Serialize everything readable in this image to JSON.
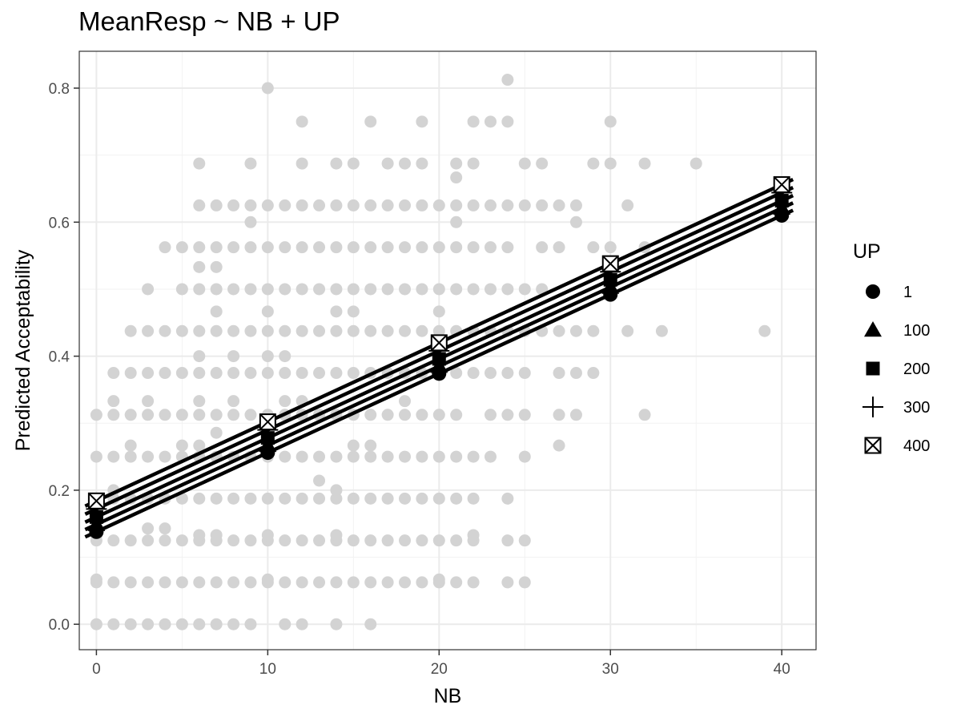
{
  "chart_data": {
    "type": "scatter",
    "title": "MeanResp ~ NB + UP",
    "xlabel": "NB",
    "ylabel": "Predicted Acceptability",
    "xlim": [
      -1,
      42
    ],
    "ylim": [
      -0.038,
      0.855
    ],
    "x_ticks": [
      0,
      10,
      20,
      30,
      40
    ],
    "y_ticks": [
      0.0,
      0.2,
      0.4,
      0.6,
      0.8
    ],
    "x_tick_labels": [
      "0",
      "10",
      "20",
      "30",
      "40"
    ],
    "y_tick_labels": [
      "0.0",
      "0.2",
      "0.4",
      "0.6",
      "0.8"
    ],
    "grid": true,
    "raw_points_color": "#d3d3d3",
    "raw_points": [
      [
        0,
        0
      ],
      [
        0,
        0.0625
      ],
      [
        0,
        0.0667
      ],
      [
        0,
        0.125
      ],
      [
        0,
        0.133
      ],
      [
        0,
        0.1875
      ],
      [
        0,
        0.25
      ],
      [
        0,
        0.3125
      ],
      [
        1,
        0
      ],
      [
        1,
        0.0625
      ],
      [
        1,
        0.125
      ],
      [
        1,
        0.1875
      ],
      [
        1,
        0.25
      ],
      [
        1,
        0.3125
      ],
      [
        1,
        0.333
      ],
      [
        1,
        0.375
      ],
      [
        1,
        0.2
      ],
      [
        2,
        0
      ],
      [
        2,
        0.0625
      ],
      [
        2,
        0.125
      ],
      [
        2,
        0.1875
      ],
      [
        2,
        0.25
      ],
      [
        2,
        0.2667
      ],
      [
        2,
        0.3125
      ],
      [
        2,
        0.375
      ],
      [
        2,
        0.4375
      ],
      [
        3,
        0
      ],
      [
        3,
        0.0625
      ],
      [
        3,
        0.125
      ],
      [
        3,
        0.1429
      ],
      [
        3,
        0.1875
      ],
      [
        3,
        0.25
      ],
      [
        3,
        0.3125
      ],
      [
        3,
        0.333
      ],
      [
        3,
        0.375
      ],
      [
        3,
        0.4375
      ],
      [
        3,
        0.5
      ],
      [
        4,
        0
      ],
      [
        4,
        0.0625
      ],
      [
        4,
        0.125
      ],
      [
        4,
        0.1429
      ],
      [
        4,
        0.1875
      ],
      [
        4,
        0.25
      ],
      [
        4,
        0.3125
      ],
      [
        4,
        0.375
      ],
      [
        4,
        0.4375
      ],
      [
        4,
        0.5625
      ],
      [
        5,
        0
      ],
      [
        5,
        0.0625
      ],
      [
        5,
        0.125
      ],
      [
        5,
        0.1875
      ],
      [
        5,
        0.25
      ],
      [
        5,
        0.2667
      ],
      [
        5,
        0.3125
      ],
      [
        5,
        0.375
      ],
      [
        5,
        0.4375
      ],
      [
        5,
        0.5
      ],
      [
        5,
        0.5625
      ],
      [
        6,
        0
      ],
      [
        6,
        0.0625
      ],
      [
        6,
        0.125
      ],
      [
        6,
        0.133
      ],
      [
        6,
        0.1875
      ],
      [
        6,
        0.25
      ],
      [
        6,
        0.2667
      ],
      [
        6,
        0.3125
      ],
      [
        6,
        0.333
      ],
      [
        6,
        0.375
      ],
      [
        6,
        0.4
      ],
      [
        6,
        0.4375
      ],
      [
        6,
        0.5
      ],
      [
        6,
        0.533
      ],
      [
        6,
        0.5625
      ],
      [
        6,
        0.625
      ],
      [
        6,
        0.6875
      ],
      [
        7,
        0
      ],
      [
        7,
        0.0625
      ],
      [
        7,
        0.125
      ],
      [
        7,
        0.133
      ],
      [
        7,
        0.1875
      ],
      [
        7,
        0.25
      ],
      [
        7,
        0.2857
      ],
      [
        7,
        0.3125
      ],
      [
        7,
        0.375
      ],
      [
        7,
        0.4375
      ],
      [
        7,
        0.4667
      ],
      [
        7,
        0.5
      ],
      [
        7,
        0.533
      ],
      [
        7,
        0.5625
      ],
      [
        7,
        0.625
      ],
      [
        8,
        0
      ],
      [
        8,
        0.0625
      ],
      [
        8,
        0.125
      ],
      [
        8,
        0.1875
      ],
      [
        8,
        0.25
      ],
      [
        8,
        0.3125
      ],
      [
        8,
        0.333
      ],
      [
        8,
        0.375
      ],
      [
        8,
        0.4
      ],
      [
        8,
        0.4375
      ],
      [
        8,
        0.5
      ],
      [
        8,
        0.5625
      ],
      [
        8,
        0.625
      ],
      [
        9,
        0
      ],
      [
        9,
        0.0625
      ],
      [
        9,
        0.125
      ],
      [
        9,
        0.1875
      ],
      [
        9,
        0.25
      ],
      [
        9,
        0.3125
      ],
      [
        9,
        0.375
      ],
      [
        9,
        0.4375
      ],
      [
        9,
        0.5
      ],
      [
        9,
        0.5625
      ],
      [
        9,
        0.6
      ],
      [
        9,
        0.625
      ],
      [
        9,
        0.6875
      ],
      [
        10,
        0.0625
      ],
      [
        10,
        0.0667
      ],
      [
        10,
        0.125
      ],
      [
        10,
        0.133
      ],
      [
        10,
        0.1875
      ],
      [
        10,
        0.25
      ],
      [
        10,
        0.3125
      ],
      [
        10,
        0.375
      ],
      [
        10,
        0.4
      ],
      [
        10,
        0.4375
      ],
      [
        10,
        0.4667
      ],
      [
        10,
        0.5
      ],
      [
        10,
        0.5625
      ],
      [
        10,
        0.625
      ],
      [
        10,
        0.8
      ],
      [
        11,
        0
      ],
      [
        11,
        0.0625
      ],
      [
        11,
        0.125
      ],
      [
        11,
        0.1875
      ],
      [
        11,
        0.25
      ],
      [
        11,
        0.3125
      ],
      [
        11,
        0.333
      ],
      [
        11,
        0.375
      ],
      [
        11,
        0.4
      ],
      [
        11,
        0.4375
      ],
      [
        11,
        0.5
      ],
      [
        11,
        0.5625
      ],
      [
        11,
        0.625
      ],
      [
        12,
        0
      ],
      [
        12,
        0.0625
      ],
      [
        12,
        0.125
      ],
      [
        12,
        0.1875
      ],
      [
        12,
        0.25
      ],
      [
        12,
        0.3125
      ],
      [
        12,
        0.333
      ],
      [
        12,
        0.375
      ],
      [
        12,
        0.4375
      ],
      [
        12,
        0.5
      ],
      [
        12,
        0.5625
      ],
      [
        12,
        0.625
      ],
      [
        12,
        0.6875
      ],
      [
        12,
        0.75
      ],
      [
        13,
        0.0625
      ],
      [
        13,
        0.125
      ],
      [
        13,
        0.1875
      ],
      [
        13,
        0.2143
      ],
      [
        13,
        0.25
      ],
      [
        13,
        0.3125
      ],
      [
        13,
        0.375
      ],
      [
        13,
        0.4375
      ],
      [
        13,
        0.5
      ],
      [
        13,
        0.5625
      ],
      [
        13,
        0.625
      ],
      [
        14,
        0
      ],
      [
        14,
        0.0625
      ],
      [
        14,
        0.125
      ],
      [
        14,
        0.133
      ],
      [
        14,
        0.1875
      ],
      [
        14,
        0.2
      ],
      [
        14,
        0.25
      ],
      [
        14,
        0.3125
      ],
      [
        14,
        0.375
      ],
      [
        14,
        0.4375
      ],
      [
        14,
        0.4667
      ],
      [
        14,
        0.5
      ],
      [
        14,
        0.5625
      ],
      [
        14,
        0.625
      ],
      [
        14,
        0.6875
      ],
      [
        15,
        0.0625
      ],
      [
        15,
        0.125
      ],
      [
        15,
        0.1875
      ],
      [
        15,
        0.25
      ],
      [
        15,
        0.2667
      ],
      [
        15,
        0.3125
      ],
      [
        15,
        0.375
      ],
      [
        15,
        0.4375
      ],
      [
        15,
        0.4667
      ],
      [
        15,
        0.5
      ],
      [
        15,
        0.5625
      ],
      [
        15,
        0.625
      ],
      [
        15,
        0.6875
      ],
      [
        16,
        0
      ],
      [
        16,
        0.0625
      ],
      [
        16,
        0.125
      ],
      [
        16,
        0.1875
      ],
      [
        16,
        0.25
      ],
      [
        16,
        0.2667
      ],
      [
        16,
        0.3125
      ],
      [
        16,
        0.375
      ],
      [
        16,
        0.4375
      ],
      [
        16,
        0.5
      ],
      [
        16,
        0.5625
      ],
      [
        16,
        0.625
      ],
      [
        16,
        0.75
      ],
      [
        17,
        0.0625
      ],
      [
        17,
        0.125
      ],
      [
        17,
        0.1875
      ],
      [
        17,
        0.25
      ],
      [
        17,
        0.3125
      ],
      [
        17,
        0.375
      ],
      [
        17,
        0.4375
      ],
      [
        17,
        0.5
      ],
      [
        17,
        0.5625
      ],
      [
        17,
        0.625
      ],
      [
        17,
        0.6875
      ],
      [
        18,
        0.0625
      ],
      [
        18,
        0.125
      ],
      [
        18,
        0.1875
      ],
      [
        18,
        0.25
      ],
      [
        18,
        0.3125
      ],
      [
        18,
        0.333
      ],
      [
        18,
        0.375
      ],
      [
        18,
        0.4375
      ],
      [
        18,
        0.5
      ],
      [
        18,
        0.5625
      ],
      [
        18,
        0.625
      ],
      [
        18,
        0.6875
      ],
      [
        19,
        0.0625
      ],
      [
        19,
        0.125
      ],
      [
        19,
        0.1875
      ],
      [
        19,
        0.25
      ],
      [
        19,
        0.3125
      ],
      [
        19,
        0.375
      ],
      [
        19,
        0.4375
      ],
      [
        19,
        0.5
      ],
      [
        19,
        0.5625
      ],
      [
        19,
        0.625
      ],
      [
        19,
        0.6875
      ],
      [
        19,
        0.75
      ],
      [
        20,
        0.0625
      ],
      [
        20,
        0.0667
      ],
      [
        20,
        0.125
      ],
      [
        20,
        0.1875
      ],
      [
        20,
        0.25
      ],
      [
        20,
        0.3125
      ],
      [
        20,
        0.375
      ],
      [
        20,
        0.4375
      ],
      [
        20,
        0.4667
      ],
      [
        20,
        0.5
      ],
      [
        20,
        0.5625
      ],
      [
        20,
        0.625
      ],
      [
        21,
        0.0625
      ],
      [
        21,
        0.125
      ],
      [
        21,
        0.1875
      ],
      [
        21,
        0.25
      ],
      [
        21,
        0.3125
      ],
      [
        21,
        0.375
      ],
      [
        21,
        0.4375
      ],
      [
        21,
        0.5
      ],
      [
        21,
        0.5625
      ],
      [
        21,
        0.6
      ],
      [
        21,
        0.625
      ],
      [
        21,
        0.6667
      ],
      [
        21,
        0.6875
      ],
      [
        22,
        0.0625
      ],
      [
        22,
        0.125
      ],
      [
        22,
        0.133
      ],
      [
        22,
        0.1875
      ],
      [
        22,
        0.25
      ],
      [
        22,
        0.375
      ],
      [
        22,
        0.4375
      ],
      [
        22,
        0.5
      ],
      [
        22,
        0.5625
      ],
      [
        22,
        0.625
      ],
      [
        22,
        0.6875
      ],
      [
        22,
        0.75
      ],
      [
        23,
        0.25
      ],
      [
        23,
        0.3125
      ],
      [
        23,
        0.375
      ],
      [
        23,
        0.4375
      ],
      [
        23,
        0.5
      ],
      [
        23,
        0.5625
      ],
      [
        23,
        0.625
      ],
      [
        23,
        0.75
      ],
      [
        24,
        0.0625
      ],
      [
        24,
        0.125
      ],
      [
        24,
        0.1875
      ],
      [
        24,
        0.3125
      ],
      [
        24,
        0.375
      ],
      [
        24,
        0.4375
      ],
      [
        24,
        0.5
      ],
      [
        24,
        0.5625
      ],
      [
        24,
        0.625
      ],
      [
        24,
        0.75
      ],
      [
        24,
        0.8125
      ],
      [
        25,
        0.0625
      ],
      [
        25,
        0.125
      ],
      [
        25,
        0.25
      ],
      [
        25,
        0.3125
      ],
      [
        25,
        0.375
      ],
      [
        25,
        0.4375
      ],
      [
        25,
        0.5
      ],
      [
        25,
        0.625
      ],
      [
        25,
        0.6875
      ],
      [
        26,
        0.4375
      ],
      [
        26,
        0.5
      ],
      [
        26,
        0.5625
      ],
      [
        26,
        0.625
      ],
      [
        26,
        0.6875
      ],
      [
        27,
        0.2667
      ],
      [
        27,
        0.3125
      ],
      [
        27,
        0.375
      ],
      [
        27,
        0.4375
      ],
      [
        27,
        0.5625
      ],
      [
        27,
        0.625
      ],
      [
        28,
        0.3125
      ],
      [
        28,
        0.375
      ],
      [
        28,
        0.4375
      ],
      [
        28,
        0.6
      ],
      [
        28,
        0.625
      ],
      [
        29,
        0.375
      ],
      [
        29,
        0.4375
      ],
      [
        29,
        0.5625
      ],
      [
        29,
        0.6875
      ],
      [
        30,
        0.5625
      ],
      [
        30,
        0.6875
      ],
      [
        30,
        0.75
      ],
      [
        31,
        0.4375
      ],
      [
        31,
        0.625
      ],
      [
        32,
        0.3125
      ],
      [
        32,
        0.5625
      ],
      [
        32,
        0.6875
      ],
      [
        33,
        0.4375
      ],
      [
        35,
        0.6875
      ],
      [
        39,
        0.4375
      ]
    ],
    "series_x": [
      0,
      10,
      20,
      30,
      40
    ],
    "series": [
      {
        "name": "1",
        "shape": "circle",
        "values": [
          0.138,
          0.256,
          0.374,
          0.492,
          0.61
        ]
      },
      {
        "name": "100",
        "shape": "triangle",
        "values": [
          0.149,
          0.267,
          0.385,
          0.503,
          0.621
        ]
      },
      {
        "name": "200",
        "shape": "square",
        "values": [
          0.16,
          0.278,
          0.396,
          0.514,
          0.632
        ]
      },
      {
        "name": "300",
        "shape": "plus",
        "values": [
          0.172,
          0.29,
          0.408,
          0.526,
          0.644
        ]
      },
      {
        "name": "400",
        "shape": "boxcross",
        "values": [
          0.184,
          0.302,
          0.42,
          0.538,
          0.656
        ]
      }
    ],
    "legend": {
      "title": "UP",
      "position": "right"
    }
  }
}
